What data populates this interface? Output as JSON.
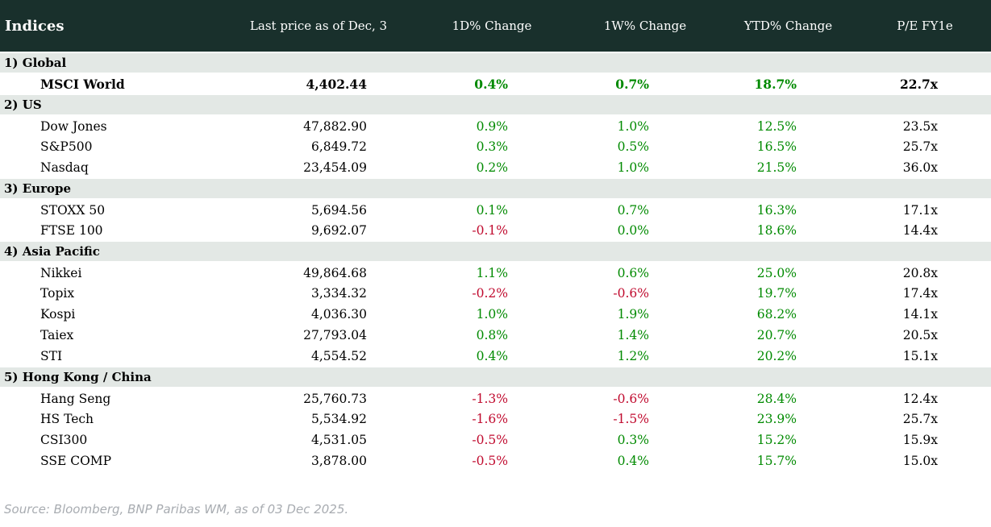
{
  "colors": {
    "header_bg": "#19302c",
    "header_fg": "#ffffff",
    "section_bg": "#e3e8e5",
    "positive": "#008a00",
    "negative": "#c00a2e",
    "source_fg": "#a8acb1"
  },
  "header": {
    "title": "Indices",
    "columns": [
      "Last price as of Dec, 3",
      "1D% Change",
      "1W% Change",
      "YTD% Change",
      "P/E FY1e"
    ]
  },
  "table": {
    "sections": [
      {
        "label": "1) Global",
        "rows": [
          {
            "name": "MSCI World",
            "last_price": "4,402.44",
            "d1": "0.4%",
            "w1": "0.7%",
            "ytd": "18.7%",
            "pe": "22.7x",
            "bold": true
          }
        ]
      },
      {
        "label": "2) US",
        "rows": [
          {
            "name": "Dow Jones",
            "last_price": "47,882.90",
            "d1": "0.9%",
            "w1": "1.0%",
            "ytd": "12.5%",
            "pe": "23.5x"
          },
          {
            "name": "S&P500",
            "last_price": "6,849.72",
            "d1": "0.3%",
            "w1": "0.5%",
            "ytd": "16.5%",
            "pe": "25.7x"
          },
          {
            "name": "Nasdaq",
            "last_price": "23,454.09",
            "d1": "0.2%",
            "w1": "1.0%",
            "ytd": "21.5%",
            "pe": "36.0x"
          }
        ]
      },
      {
        "label": "3) Europe",
        "rows": [
          {
            "name": "STOXX 50",
            "last_price": "5,694.56",
            "d1": "0.1%",
            "w1": "0.7%",
            "ytd": "16.3%",
            "pe": "17.1x"
          },
          {
            "name": "FTSE 100",
            "last_price": "9,692.07",
            "d1": "-0.1%",
            "w1": "0.0%",
            "ytd": "18.6%",
            "pe": "14.4x"
          }
        ]
      },
      {
        "label": "4) Asia Pacific",
        "rows": [
          {
            "name": "Nikkei",
            "last_price": "49,864.68",
            "d1": "1.1%",
            "w1": "0.6%",
            "ytd": "25.0%",
            "pe": "20.8x"
          },
          {
            "name": "Topix",
            "last_price": "3,334.32",
            "d1": "-0.2%",
            "w1": "-0.6%",
            "ytd": "19.7%",
            "pe": "17.4x"
          },
          {
            "name": "Kospi",
            "last_price": "4,036.30",
            "d1": "1.0%",
            "w1": "1.9%",
            "ytd": "68.2%",
            "pe": "14.1x"
          },
          {
            "name": "Taiex",
            "last_price": "27,793.04",
            "d1": "0.8%",
            "w1": "1.4%",
            "ytd": "20.7%",
            "pe": "20.5x"
          },
          {
            "name": "STI",
            "last_price": "4,554.52",
            "d1": "0.4%",
            "w1": "1.2%",
            "ytd": "20.2%",
            "pe": "15.1x"
          }
        ]
      },
      {
        "label": "5) Hong Kong / China",
        "rows": [
          {
            "name": "Hang Seng",
            "last_price": "25,760.73",
            "d1": "-1.3%",
            "w1": "-0.6%",
            "ytd": "28.4%",
            "pe": "12.4x"
          },
          {
            "name": "HS Tech",
            "last_price": "5,534.92",
            "d1": "-1.6%",
            "w1": "-1.5%",
            "ytd": "23.9%",
            "pe": "25.7x"
          },
          {
            "name": "CSI300",
            "last_price": "4,531.05",
            "d1": "-0.5%",
            "w1": "0.3%",
            "ytd": "15.2%",
            "pe": "15.9x"
          },
          {
            "name": "SSE COMP",
            "last_price": "3,878.00",
            "d1": "-0.5%",
            "w1": "0.4%",
            "ytd": "15.7%",
            "pe": "15.0x"
          }
        ]
      }
    ]
  },
  "footer": {
    "source": "Source: Bloomberg, BNP Paribas WM, as of 03 Dec 2025."
  },
  "chart_data": {
    "type": "table",
    "title": "Indices",
    "columns": [
      "Indices",
      "Last price as of Dec, 3",
      "1D% Change",
      "1W% Change",
      "YTD% Change",
      "P/E FY1e"
    ],
    "rows": [
      {
        "section": "1) Global",
        "index": "MSCI World",
        "last_price": 4402.44,
        "change_1d_pct": 0.4,
        "change_1w_pct": 0.7,
        "ytd_pct": 18.7,
        "pe_fy1e": "22.7x"
      },
      {
        "section": "2) US",
        "index": "Dow Jones",
        "last_price": 47882.9,
        "change_1d_pct": 0.9,
        "change_1w_pct": 1.0,
        "ytd_pct": 12.5,
        "pe_fy1e": "23.5x"
      },
      {
        "section": "2) US",
        "index": "S&P500",
        "last_price": 6849.72,
        "change_1d_pct": 0.3,
        "change_1w_pct": 0.5,
        "ytd_pct": 16.5,
        "pe_fy1e": "25.7x"
      },
      {
        "section": "2) US",
        "index": "Nasdaq",
        "last_price": 23454.09,
        "change_1d_pct": 0.2,
        "change_1w_pct": 1.0,
        "ytd_pct": 21.5,
        "pe_fy1e": "36.0x"
      },
      {
        "section": "3) Europe",
        "index": "STOXX 50",
        "last_price": 5694.56,
        "change_1d_pct": 0.1,
        "change_1w_pct": 0.7,
        "ytd_pct": 16.3,
        "pe_fy1e": "17.1x"
      },
      {
        "section": "3) Europe",
        "index": "FTSE 100",
        "last_price": 9692.07,
        "change_1d_pct": -0.1,
        "change_1w_pct": 0.0,
        "ytd_pct": 18.6,
        "pe_fy1e": "14.4x"
      },
      {
        "section": "4) Asia Pacific",
        "index": "Nikkei",
        "last_price": 49864.68,
        "change_1d_pct": 1.1,
        "change_1w_pct": 0.6,
        "ytd_pct": 25.0,
        "pe_fy1e": "20.8x"
      },
      {
        "section": "4) Asia Pacific",
        "index": "Topix",
        "last_price": 3334.32,
        "change_1d_pct": -0.2,
        "change_1w_pct": -0.6,
        "ytd_pct": 19.7,
        "pe_fy1e": "17.4x"
      },
      {
        "section": "4) Asia Pacific",
        "index": "Kospi",
        "last_price": 4036.3,
        "change_1d_pct": 1.0,
        "change_1w_pct": 1.9,
        "ytd_pct": 68.2,
        "pe_fy1e": "14.1x"
      },
      {
        "section": "4) Asia Pacific",
        "index": "Taiex",
        "last_price": 27793.04,
        "change_1d_pct": 0.8,
        "change_1w_pct": 1.4,
        "ytd_pct": 20.7,
        "pe_fy1e": "20.5x"
      },
      {
        "section": "4) Asia Pacific",
        "index": "STI",
        "last_price": 4554.52,
        "change_1d_pct": 0.4,
        "change_1w_pct": 1.2,
        "ytd_pct": 20.2,
        "pe_fy1e": "15.1x"
      },
      {
        "section": "5) Hong Kong / China",
        "index": "Hang Seng",
        "last_price": 25760.73,
        "change_1d_pct": -1.3,
        "change_1w_pct": -0.6,
        "ytd_pct": 28.4,
        "pe_fy1e": "12.4x"
      },
      {
        "section": "5) Hong Kong / China",
        "index": "HS Tech",
        "last_price": 5534.92,
        "change_1d_pct": -1.6,
        "change_1w_pct": -1.5,
        "ytd_pct": 23.9,
        "pe_fy1e": "25.7x"
      },
      {
        "section": "5) Hong Kong / China",
        "index": "CSI300",
        "last_price": 4531.05,
        "change_1d_pct": -0.5,
        "change_1w_pct": 0.3,
        "ytd_pct": 15.2,
        "pe_fy1e": "15.9x"
      },
      {
        "section": "5) Hong Kong / China",
        "index": "SSE COMP",
        "last_price": 3878.0,
        "change_1d_pct": -0.5,
        "change_1w_pct": 0.4,
        "ytd_pct": 15.7,
        "pe_fy1e": "15.0x"
      }
    ],
    "value_color_rule": "negative values red, zero/positive values green; last price and P/E in black",
    "source_note": "Source: Bloomberg, BNP Paribas WM, as of 03 Dec 2025."
  }
}
